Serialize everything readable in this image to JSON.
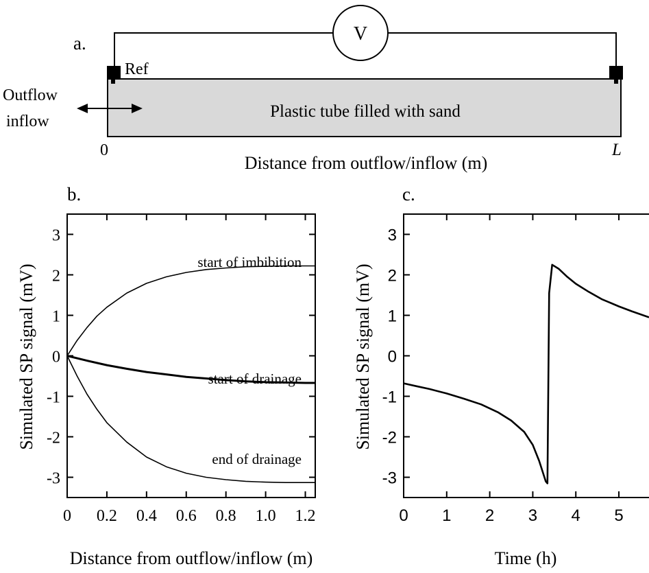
{
  "schematic": {
    "panel_label": "a.",
    "voltmeter_label": "V",
    "ref_label": "Ref",
    "tube_label": "Plastic tube filled with sand",
    "side_label_1": "Outflow",
    "side_label_2": "inflow",
    "zero_label": "0",
    "end_label": "L",
    "axis_label": "Distance from outflow/inflow (m)"
  },
  "chart_data": [
    {
      "type": "line",
      "panel_label": "b.",
      "xlabel": "Distance from outflow/inflow (m)",
      "ylabel": "Simulated SP signal (mV)",
      "xlim": [
        0,
        1.25
      ],
      "ylim": [
        -3.5,
        3.5
      ],
      "x_ticks": [
        "0",
        "0.2",
        "0.4",
        "0.6",
        "0.8",
        "1.0",
        "1.2"
      ],
      "y_ticks": [
        "3",
        "2",
        "1",
        "0",
        "-1",
        "-2",
        "-3"
      ],
      "grid": false,
      "series": [
        {
          "name": "start of imbibition",
          "x": [
            0,
            0.05,
            0.1,
            0.15,
            0.2,
            0.3,
            0.4,
            0.5,
            0.6,
            0.7,
            0.8,
            0.9,
            1.0,
            1.1,
            1.2,
            1.25
          ],
          "y": [
            0,
            0.38,
            0.7,
            0.98,
            1.2,
            1.55,
            1.79,
            1.95,
            2.06,
            2.13,
            2.17,
            2.2,
            2.21,
            2.22,
            2.22,
            2.22
          ]
        },
        {
          "name": "start of drainage",
          "x": [
            0,
            0.1,
            0.2,
            0.3,
            0.4,
            0.5,
            0.6,
            0.7,
            0.8,
            0.9,
            1.0,
            1.1,
            1.2,
            1.25
          ],
          "y": [
            0,
            -0.12,
            -0.23,
            -0.32,
            -0.4,
            -0.46,
            -0.52,
            -0.56,
            -0.6,
            -0.63,
            -0.65,
            -0.66,
            -0.67,
            -0.67
          ]
        },
        {
          "name": "end of drainage",
          "x": [
            0,
            0.05,
            0.1,
            0.15,
            0.2,
            0.3,
            0.4,
            0.5,
            0.6,
            0.7,
            0.8,
            0.9,
            1.0,
            1.1,
            1.2,
            1.25
          ],
          "y": [
            0,
            -0.5,
            -0.95,
            -1.32,
            -1.65,
            -2.13,
            -2.5,
            -2.74,
            -2.9,
            -3.0,
            -3.06,
            -3.1,
            -3.12,
            -3.13,
            -3.13,
            -3.13
          ]
        }
      ]
    },
    {
      "type": "line",
      "panel_label": "c.",
      "xlabel": "Time (h)",
      "ylabel": "Simulated SP signal (mV)",
      "xlim": [
        0,
        5.7
      ],
      "ylim": [
        -3.5,
        3.5
      ],
      "x_ticks": [
        "0",
        "1",
        "2",
        "3",
        "4",
        "5"
      ],
      "y_ticks": [
        "3",
        "2",
        "1",
        "0",
        "-1",
        "-2",
        "-3"
      ],
      "grid": false,
      "series": [
        {
          "x": [
            0,
            0.3,
            0.6,
            1.0,
            1.4,
            1.8,
            2.2,
            2.5,
            2.8,
            3.0,
            3.15,
            3.3,
            3.34,
            3.38,
            3.45,
            3.6,
            3.8,
            4.0,
            4.3,
            4.6,
            5.0,
            5.3,
            5.7
          ],
          "y": [
            -0.68,
            -0.75,
            -0.82,
            -0.93,
            -1.06,
            -1.2,
            -1.4,
            -1.6,
            -1.88,
            -2.2,
            -2.6,
            -3.1,
            -3.15,
            1.55,
            2.25,
            2.15,
            1.95,
            1.78,
            1.58,
            1.4,
            1.22,
            1.1,
            0.95
          ]
        }
      ]
    }
  ]
}
